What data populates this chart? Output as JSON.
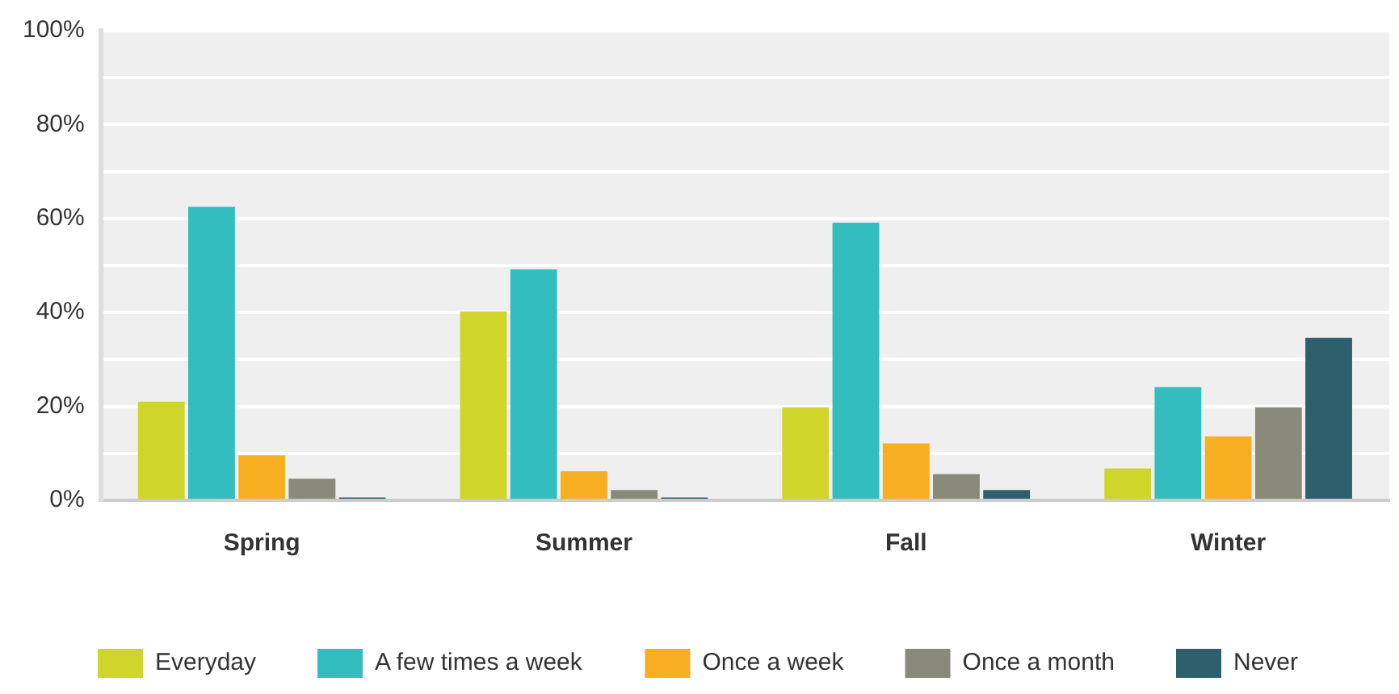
{
  "chart_data": {
    "type": "bar",
    "categories": [
      "Spring",
      "Summer",
      "Fall",
      "Winter"
    ],
    "series": [
      {
        "name": "Everyday",
        "color": "#cfd52a",
        "values": [
          21.0,
          40.2,
          19.8,
          6.8
        ]
      },
      {
        "name": "A few times a week",
        "color": "#33bdbf",
        "values": [
          62.5,
          49.2,
          59.1,
          24.1
        ]
      },
      {
        "name": "Once a week",
        "color": "#f7ae20",
        "values": [
          9.6,
          6.2,
          12.1,
          13.6
        ]
      },
      {
        "name": "Once a month",
        "color": "#8a8a7b",
        "values": [
          4.6,
          2.2,
          5.6,
          19.8
        ]
      },
      {
        "name": "Never",
        "color": "#2e5f6d",
        "values": [
          0.6,
          0.6,
          2.2,
          34.6
        ]
      }
    ],
    "ylim": [
      0,
      100
    ],
    "yticks": [
      {
        "value": 0,
        "label": "0%"
      },
      {
        "value": 10,
        "label": null
      },
      {
        "value": 20,
        "label": "20%"
      },
      {
        "value": 30,
        "label": null
      },
      {
        "value": 40,
        "label": "40%"
      },
      {
        "value": 50,
        "label": null
      },
      {
        "value": 60,
        "label": "60%"
      },
      {
        "value": 70,
        "label": null
      },
      {
        "value": 80,
        "label": "80%"
      },
      {
        "value": 90,
        "label": null
      },
      {
        "value": 100,
        "label": "100%"
      }
    ],
    "grid": "y",
    "legend": "bottom"
  }
}
